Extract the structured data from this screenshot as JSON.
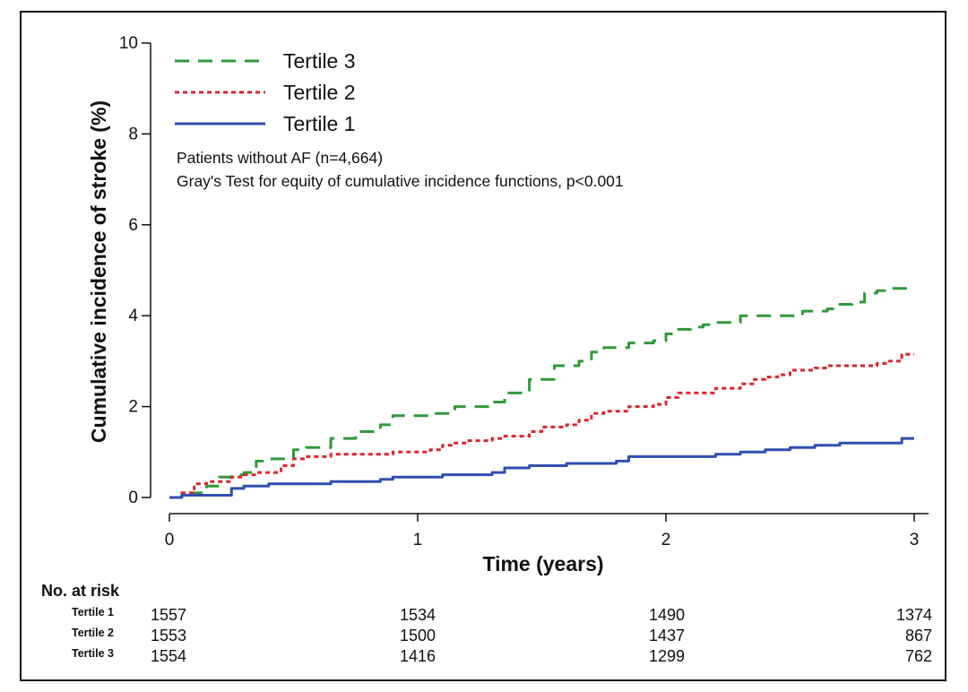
{
  "chart_data": {
    "type": "line",
    "xlabel": "Time (years)",
    "ylabel": "Cumulative incidence of stroke (%)",
    "xlim": [
      0,
      3
    ],
    "ylim": [
      0,
      10
    ],
    "x_ticks": [
      "0",
      "1",
      "2",
      "3"
    ],
    "y_ticks": [
      "0",
      "2",
      "4",
      "6",
      "8",
      "10"
    ],
    "grid": false,
    "legend_position": "top-left",
    "annotations": [
      "Patients without AF (n=4,664)",
      "Gray's Test for equity of cumulative incidence functions, p<0.001"
    ],
    "series": [
      {
        "name": "Tertile 3",
        "color": "#2e9a3a",
        "style": "dashed",
        "points": [
          [
            0,
            0
          ],
          [
            0.05,
            0.05
          ],
          [
            0.1,
            0.1
          ],
          [
            0.15,
            0.25
          ],
          [
            0.2,
            0.45
          ],
          [
            0.25,
            0.5
          ],
          [
            0.3,
            0.55
          ],
          [
            0.35,
            0.8
          ],
          [
            0.4,
            0.85
          ],
          [
            0.5,
            1.05
          ],
          [
            0.55,
            1.1
          ],
          [
            0.65,
            1.3
          ],
          [
            0.75,
            1.45
          ],
          [
            0.85,
            1.6
          ],
          [
            0.9,
            1.8
          ],
          [
            1.0,
            1.8
          ],
          [
            1.05,
            1.85
          ],
          [
            1.15,
            2.0
          ],
          [
            1.2,
            2.0
          ],
          [
            1.3,
            2.1
          ],
          [
            1.35,
            2.3
          ],
          [
            1.45,
            2.6
          ],
          [
            1.55,
            2.9
          ],
          [
            1.65,
            3.0
          ],
          [
            1.7,
            3.2
          ],
          [
            1.75,
            3.3
          ],
          [
            1.85,
            3.4
          ],
          [
            1.95,
            3.45
          ],
          [
            2.0,
            3.6
          ],
          [
            2.05,
            3.7
          ],
          [
            2.1,
            3.75
          ],
          [
            2.15,
            3.8
          ],
          [
            2.2,
            3.85
          ],
          [
            2.3,
            4.0
          ],
          [
            2.45,
            4.0
          ],
          [
            2.55,
            4.1
          ],
          [
            2.65,
            4.15
          ],
          [
            2.7,
            4.25
          ],
          [
            2.75,
            4.3
          ],
          [
            2.8,
            4.5
          ],
          [
            2.85,
            4.55
          ],
          [
            2.9,
            4.6
          ],
          [
            3.0,
            4.6
          ]
        ]
      },
      {
        "name": "Tertile 2",
        "color": "#d9262e",
        "style": "dotted",
        "points": [
          [
            0,
            0
          ],
          [
            0.05,
            0.1
          ],
          [
            0.1,
            0.3
          ],
          [
            0.15,
            0.35
          ],
          [
            0.25,
            0.45
          ],
          [
            0.3,
            0.5
          ],
          [
            0.35,
            0.55
          ],
          [
            0.45,
            0.7
          ],
          [
            0.5,
            0.85
          ],
          [
            0.55,
            0.9
          ],
          [
            0.65,
            0.95
          ],
          [
            0.75,
            0.95
          ],
          [
            0.8,
            0.95
          ],
          [
            0.9,
            1.0
          ],
          [
            1.0,
            1.0
          ],
          [
            1.05,
            1.05
          ],
          [
            1.1,
            1.15
          ],
          [
            1.15,
            1.2
          ],
          [
            1.2,
            1.25
          ],
          [
            1.3,
            1.3
          ],
          [
            1.35,
            1.35
          ],
          [
            1.45,
            1.45
          ],
          [
            1.5,
            1.55
          ],
          [
            1.6,
            1.6
          ],
          [
            1.65,
            1.7
          ],
          [
            1.7,
            1.85
          ],
          [
            1.75,
            1.9
          ],
          [
            1.85,
            2.0
          ],
          [
            1.95,
            2.05
          ],
          [
            2.0,
            2.2
          ],
          [
            2.05,
            2.3
          ],
          [
            2.15,
            2.3
          ],
          [
            2.2,
            2.4
          ],
          [
            2.3,
            2.5
          ],
          [
            2.35,
            2.6
          ],
          [
            2.4,
            2.65
          ],
          [
            2.45,
            2.7
          ],
          [
            2.5,
            2.8
          ],
          [
            2.55,
            2.8
          ],
          [
            2.6,
            2.85
          ],
          [
            2.65,
            2.9
          ],
          [
            2.75,
            2.9
          ],
          [
            2.8,
            2.9
          ],
          [
            2.85,
            2.95
          ],
          [
            2.9,
            3.0
          ],
          [
            2.95,
            3.15
          ],
          [
            3.0,
            3.15
          ]
        ]
      },
      {
        "name": "Tertile 1",
        "color": "#2f4fb0",
        "style": "solid",
        "points": [
          [
            0,
            0
          ],
          [
            0.05,
            0.05
          ],
          [
            0.22,
            0.05
          ],
          [
            0.25,
            0.2
          ],
          [
            0.3,
            0.25
          ],
          [
            0.4,
            0.3
          ],
          [
            0.55,
            0.3
          ],
          [
            0.65,
            0.35
          ],
          [
            0.85,
            0.4
          ],
          [
            0.9,
            0.45
          ],
          [
            1.0,
            0.45
          ],
          [
            1.1,
            0.5
          ],
          [
            1.2,
            0.5
          ],
          [
            1.3,
            0.55
          ],
          [
            1.35,
            0.65
          ],
          [
            1.45,
            0.7
          ],
          [
            1.6,
            0.75
          ],
          [
            1.7,
            0.75
          ],
          [
            1.8,
            0.8
          ],
          [
            1.85,
            0.9
          ],
          [
            2.0,
            0.9
          ],
          [
            2.2,
            0.95
          ],
          [
            2.3,
            1.0
          ],
          [
            2.4,
            1.05
          ],
          [
            2.5,
            1.1
          ],
          [
            2.6,
            1.15
          ],
          [
            2.7,
            1.2
          ],
          [
            2.8,
            1.2
          ],
          [
            2.9,
            1.2
          ],
          [
            2.95,
            1.3
          ],
          [
            3.0,
            1.3
          ]
        ]
      }
    ],
    "risk_table": {
      "title": "No. at risk",
      "times": [
        0,
        1,
        2,
        3
      ],
      "rows": [
        {
          "name": "Tertile 1",
          "values": [
            "1557",
            "1534",
            "1490",
            "1374"
          ]
        },
        {
          "name": "Tertile 2",
          "values": [
            "1553",
            "1500",
            "1437",
            "867"
          ]
        },
        {
          "name": "Tertile 3",
          "values": [
            "1554",
            "1416",
            "1299",
            "762"
          ]
        }
      ]
    }
  }
}
